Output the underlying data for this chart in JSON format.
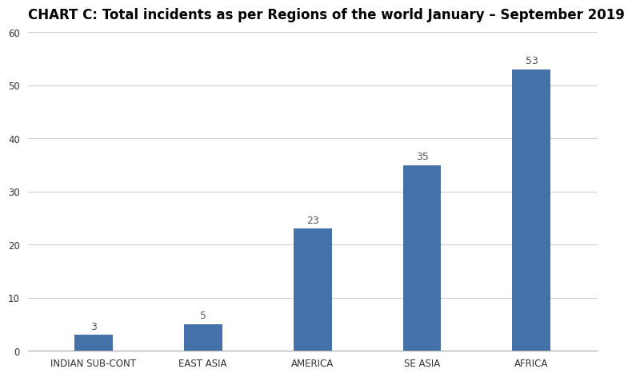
{
  "title": "CHART C: Total incidents as per Regions of the world January – September 2019",
  "categories": [
    "INDIAN SUB-CONT",
    "EAST ASIA",
    "AMERICA",
    "SE ASIA",
    "AFRICA"
  ],
  "values": [
    3,
    5,
    23,
    35,
    53
  ],
  "bar_color": "#4472a8",
  "ylim": [
    0,
    60
  ],
  "yticks": [
    0,
    10,
    20,
    30,
    40,
    50,
    60
  ],
  "title_fontsize": 12,
  "label_fontsize": 8.5,
  "value_label_fontsize": 9,
  "background_color": "#ffffff",
  "plot_bg_color": "#ffffff",
  "grid_color": "#d0d0d0",
  "bar_width": 0.35
}
